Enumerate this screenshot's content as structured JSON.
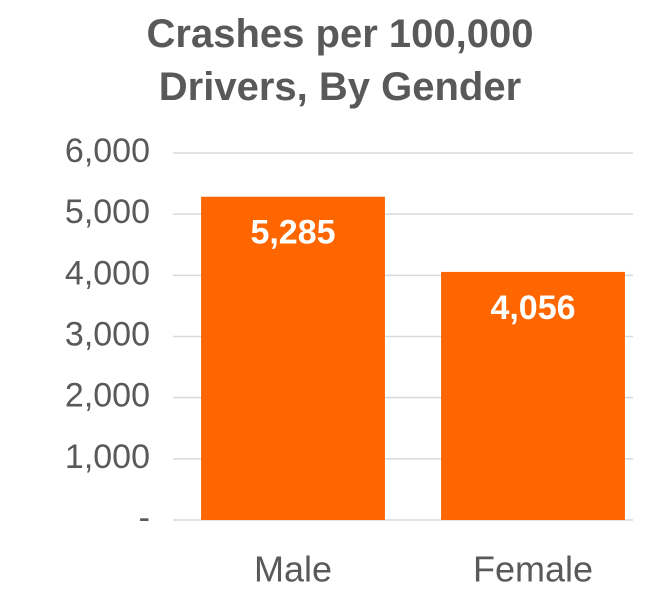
{
  "chart_data": {
    "type": "bar",
    "title": "Crashes per 100,000 Drivers, By Gender",
    "categories": [
      "Male",
      "Female"
    ],
    "values": [
      5285,
      4056
    ],
    "value_labels": [
      "5,285",
      "4,056"
    ],
    "color": "#ff6600",
    "ylim": [
      0,
      6000
    ],
    "yticks": [
      {
        "value": 0,
        "label": "-"
      },
      {
        "value": 1000,
        "label": "1,000"
      },
      {
        "value": 2000,
        "label": "2,000"
      },
      {
        "value": 3000,
        "label": "3,000"
      },
      {
        "value": 4000,
        "label": "4,000"
      },
      {
        "value": 5000,
        "label": "5,000"
      },
      {
        "value": 6000,
        "label": "6,000"
      }
    ],
    "grid": true
  }
}
